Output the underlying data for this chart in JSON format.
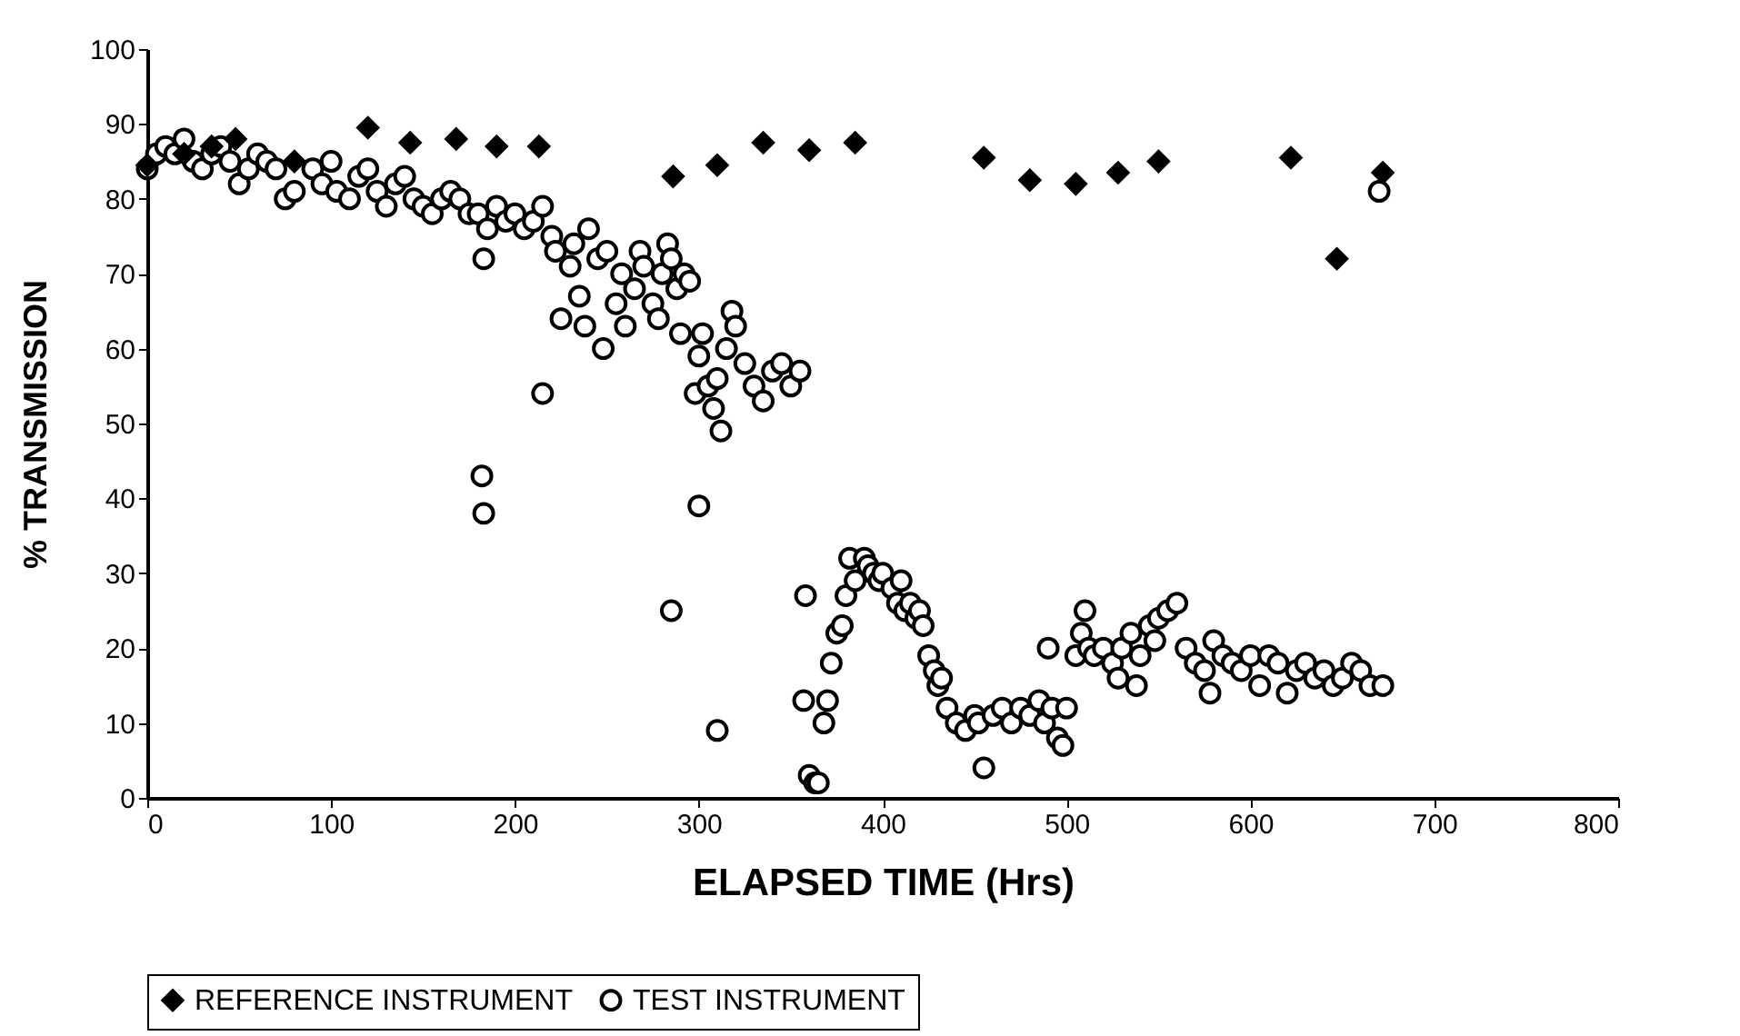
{
  "chart_data": {
    "type": "scatter",
    "xlabel": "ELAPSED TIME (Hrs)",
    "ylabel": "% TRANSMISSION",
    "xlim": [
      0,
      800
    ],
    "xticks": [
      0,
      100,
      200,
      300,
      400,
      500,
      600,
      700,
      800
    ],
    "ylim": [
      0,
      100
    ],
    "yticks": [
      0,
      10,
      20,
      30,
      40,
      50,
      60,
      70,
      80,
      90,
      100
    ],
    "grid": false,
    "legend": "bottom",
    "series": [
      {
        "name": "REFERENCE INSTRUMENT",
        "color": "#000000",
        "marker": "diamond",
        "x": [
          0,
          20,
          35,
          48,
          80,
          120,
          143,
          168,
          190,
          213,
          286,
          310,
          335,
          360,
          385,
          455,
          480,
          505,
          528,
          550,
          622,
          647,
          672
        ],
        "values": [
          84.5,
          86,
          87,
          88,
          85,
          89.5,
          87.5,
          88,
          87,
          87,
          83,
          84.5,
          87.5,
          86.5,
          87.5,
          85.5,
          82.5,
          82,
          83.5,
          85,
          85.5,
          72,
          83.5
        ]
      },
      {
        "name": "TEST INSTRUMENT",
        "color": "#000000",
        "marker": "circle",
        "x": [
          0,
          5,
          10,
          15,
          20,
          25,
          30,
          35,
          40,
          45,
          50,
          55,
          60,
          65,
          70,
          75,
          80,
          90,
          95,
          100,
          103,
          110,
          115,
          120,
          125,
          130,
          135,
          140,
          145,
          150,
          155,
          160,
          165,
          170,
          175,
          180,
          183,
          185,
          190,
          195,
          200,
          205,
          210,
          215,
          220,
          222,
          225,
          230,
          232,
          235,
          238,
          240,
          245,
          248,
          250,
          255,
          258,
          260,
          265,
          268,
          270,
          275,
          278,
          280,
          283,
          285,
          288,
          290,
          292,
          295,
          298,
          300,
          302,
          305,
          308,
          310,
          312,
          315,
          318,
          320,
          325,
          330,
          335,
          340,
          345,
          350,
          355,
          215,
          182,
          183,
          300,
          285,
          310,
          357,
          358,
          360,
          363,
          365,
          368,
          370,
          372,
          375,
          378,
          380,
          382,
          385,
          390,
          392,
          395,
          398,
          400,
          405,
          408,
          410,
          412,
          415,
          418,
          420,
          422,
          425,
          428,
          430,
          432,
          435,
          440,
          445,
          450,
          452,
          455,
          460,
          465,
          470,
          475,
          480,
          485,
          488,
          490,
          492,
          495,
          498,
          500,
          505,
          508,
          510,
          512,
          515,
          520,
          525,
          528,
          530,
          535,
          538,
          540,
          545,
          548,
          550,
          555,
          560,
          565,
          570,
          575,
          578,
          580,
          585,
          590,
          595,
          600,
          605,
          610,
          615,
          620,
          625,
          630,
          635,
          640,
          645,
          650,
          655,
          660,
          665,
          672,
          670
        ],
        "values": [
          84,
          86,
          87,
          86,
          88,
          85,
          84,
          86,
          87,
          85,
          82,
          84,
          86,
          85,
          84,
          80,
          81,
          84,
          82,
          85,
          81,
          80,
          83,
          84,
          81,
          79,
          82,
          83,
          80,
          79,
          78,
          80,
          81,
          80,
          78,
          78,
          72,
          76,
          79,
          77,
          78,
          76,
          77,
          79,
          75,
          73,
          64,
          71,
          74,
          67,
          63,
          76,
          72,
          60,
          73,
          66,
          70,
          63,
          68,
          73,
          71,
          66,
          64,
          70,
          74,
          72,
          68,
          62,
          70,
          69,
          54,
          59,
          62,
          55,
          52,
          56,
          49,
          60,
          65,
          63,
          58,
          55,
          53,
          57,
          58,
          55,
          57,
          54,
          43,
          38,
          39,
          25,
          9,
          13,
          27,
          3,
          2,
          2,
          10,
          13,
          18,
          22,
          23,
          27,
          32,
          29,
          32,
          31,
          30,
          29,
          30,
          28,
          26,
          29,
          25,
          26,
          24,
          25,
          23,
          19,
          17,
          15,
          16,
          12,
          10,
          9,
          11,
          10,
          4,
          11,
          12,
          10,
          12,
          11,
          13,
          10,
          20,
          12,
          8,
          7,
          12,
          19,
          22,
          25,
          20,
          19,
          20,
          18,
          16,
          20,
          22,
          15,
          19,
          23,
          21,
          24,
          25,
          26,
          20,
          18,
          17,
          14,
          21,
          19,
          18,
          17,
          19,
          15,
          19,
          18,
          14,
          17,
          18,
          16,
          17,
          15,
          16,
          18,
          17,
          15,
          15,
          81
        ]
      }
    ]
  }
}
